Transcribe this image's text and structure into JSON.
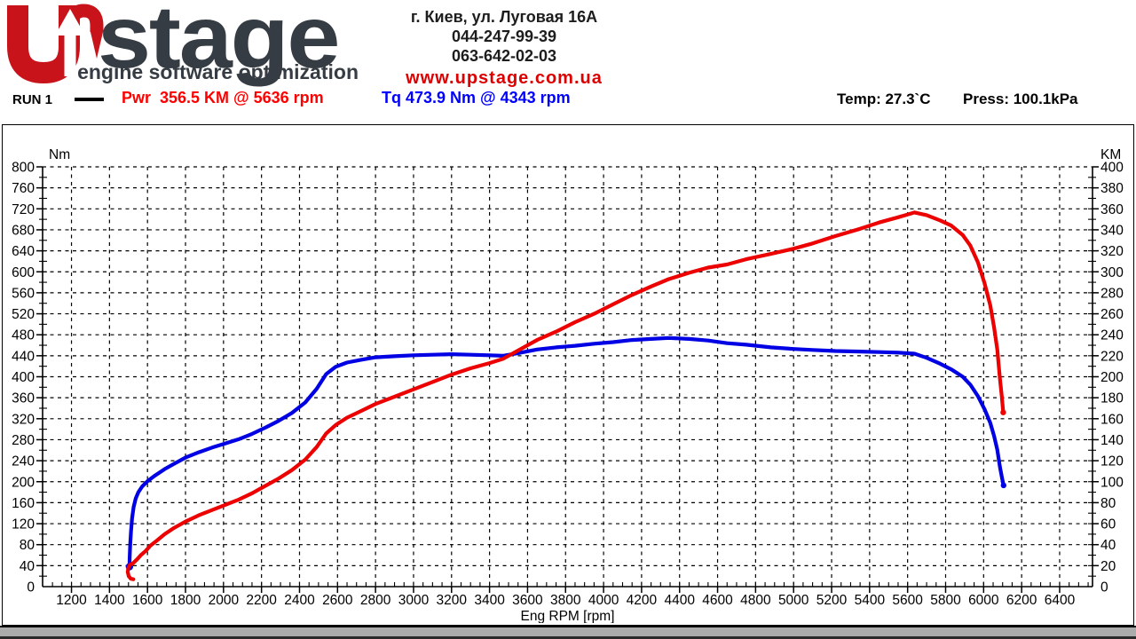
{
  "header": {
    "logo": {
      "wordmark": "stage",
      "tagline": "engine software optimization",
      "brand_red": "#c8131b",
      "brand_dark": "#363c43"
    },
    "contact": {
      "address": "г. Киев, ул. Луговая 16А",
      "phone1": "044-247-99-39",
      "phone2": "063-642-02-03",
      "website": "www.upstage.com.ua",
      "website_color": "#dd0000"
    },
    "run": {
      "label": "RUN 1",
      "power_reading": "Pwr  356.5 KM @ 5636 rpm",
      "power_color": "#fe0000",
      "torque_reading": "Tq 473.9 Nm @ 4343 rpm",
      "torque_color": "#0000fe"
    },
    "conditions": {
      "temperature": "Temp: 27.3`C",
      "pressure": "Press: 100.1kPa"
    }
  },
  "chart_data": {
    "type": "line",
    "title": "",
    "xlabel": "Eng RPM [rpm]",
    "grid": "dashed",
    "x_axis": {
      "min": 1048,
      "max": 6573,
      "tick_start": 1200,
      "tick_end": 6400,
      "tick_step": 200,
      "minor_step": 50
    },
    "left_axis": {
      "label": "Nm",
      "min": 0,
      "max": 800,
      "step": 40,
      "minor_step": 20
    },
    "right_axis": {
      "label": "KM",
      "min": 0,
      "max": 400,
      "step": 20,
      "minor_step": 10
    },
    "series": [
      {
        "name": "Torque",
        "axis": "left",
        "unit": "Nm",
        "color": "#0000e4",
        "peak": {
          "value": 473.9,
          "rpm": 4343
        },
        "start_dot": true,
        "end_dot": true,
        "points": [
          [
            1505,
            38
          ],
          [
            1506,
            55
          ],
          [
            1509,
            80
          ],
          [
            1513,
            105
          ],
          [
            1519,
            130
          ],
          [
            1527,
            152
          ],
          [
            1538,
            168
          ],
          [
            1552,
            180
          ],
          [
            1572,
            191
          ],
          [
            1600,
            201
          ],
          [
            1640,
            212
          ],
          [
            1690,
            224
          ],
          [
            1740,
            234
          ],
          [
            1800,
            246
          ],
          [
            1870,
            256
          ],
          [
            1940,
            265
          ],
          [
            2010,
            273
          ],
          [
            2080,
            281
          ],
          [
            2150,
            291
          ],
          [
            2220,
            303
          ],
          [
            2290,
            316
          ],
          [
            2360,
            331
          ],
          [
            2430,
            351
          ],
          [
            2490,
            377
          ],
          [
            2540,
            405
          ],
          [
            2590,
            419
          ],
          [
            2650,
            427
          ],
          [
            2720,
            432
          ],
          [
            2800,
            437
          ],
          [
            2900,
            439
          ],
          [
            3000,
            441
          ],
          [
            3100,
            442
          ],
          [
            3200,
            443
          ],
          [
            3300,
            442
          ],
          [
            3400,
            441
          ],
          [
            3470,
            440
          ],
          [
            3550,
            445
          ],
          [
            3650,
            452
          ],
          [
            3750,
            456
          ],
          [
            3850,
            459
          ],
          [
            3950,
            463
          ],
          [
            4050,
            466
          ],
          [
            4150,
            470
          ],
          [
            4250,
            472
          ],
          [
            4343,
            473.9
          ],
          [
            4450,
            472
          ],
          [
            4550,
            469
          ],
          [
            4650,
            464
          ],
          [
            4750,
            461
          ],
          [
            4880,
            456
          ],
          [
            5000,
            453
          ],
          [
            5100,
            451
          ],
          [
            5220,
            449
          ],
          [
            5350,
            448
          ],
          [
            5450,
            447
          ],
          [
            5550,
            446
          ],
          [
            5636,
            444
          ],
          [
            5700,
            436
          ],
          [
            5770,
            425
          ],
          [
            5830,
            414
          ],
          [
            5890,
            400
          ],
          [
            5930,
            385
          ],
          [
            5970,
            363
          ],
          [
            6005,
            338
          ],
          [
            6035,
            312
          ],
          [
            6055,
            287
          ],
          [
            6072,
            261
          ],
          [
            6086,
            228
          ],
          [
            6095,
            210
          ],
          [
            6105,
            193
          ]
        ]
      },
      {
        "name": "Power",
        "axis": "right",
        "unit": "KM",
        "color": "#ec0000",
        "peak": {
          "value": 356.5,
          "rpm": 5636
        },
        "start_dot": false,
        "end_dot": true,
        "points": [
          [
            1526,
            7
          ],
          [
            1512,
            7.5
          ],
          [
            1501,
            10
          ],
          [
            1496,
            14
          ],
          [
            1499,
            18
          ],
          [
            1508,
            21
          ],
          [
            1522,
            22
          ],
          [
            1545,
            26
          ],
          [
            1565,
            30
          ],
          [
            1590,
            34
          ],
          [
            1615,
            39
          ],
          [
            1650,
            44
          ],
          [
            1690,
            50
          ],
          [
            1740,
            56
          ],
          [
            1800,
            62
          ],
          [
            1870,
            68
          ],
          [
            1940,
            73
          ],
          [
            2010,
            78
          ],
          [
            2080,
            83
          ],
          [
            2150,
            89
          ],
          [
            2220,
            96
          ],
          [
            2290,
            103
          ],
          [
            2360,
            111
          ],
          [
            2430,
            121
          ],
          [
            2490,
            133
          ],
          [
            2540,
            146
          ],
          [
            2590,
            154
          ],
          [
            2650,
            161
          ],
          [
            2720,
            167
          ],
          [
            2800,
            174
          ],
          [
            2900,
            181
          ],
          [
            3000,
            188
          ],
          [
            3100,
            195
          ],
          [
            3200,
            202
          ],
          [
            3300,
            208
          ],
          [
            3400,
            213
          ],
          [
            3470,
            217
          ],
          [
            3550,
            225
          ],
          [
            3650,
            235
          ],
          [
            3750,
            243
          ],
          [
            3850,
            252
          ],
          [
            3950,
            260
          ],
          [
            4050,
            269
          ],
          [
            4150,
            278
          ],
          [
            4250,
            286
          ],
          [
            4343,
            293
          ],
          [
            4450,
            299
          ],
          [
            4550,
            304
          ],
          [
            4650,
            307
          ],
          [
            4750,
            312
          ],
          [
            4880,
            317
          ],
          [
            5000,
            322
          ],
          [
            5100,
            327
          ],
          [
            5220,
            334
          ],
          [
            5350,
            341
          ],
          [
            5450,
            347
          ],
          [
            5550,
            352
          ],
          [
            5636,
            356.5
          ],
          [
            5700,
            354
          ],
          [
            5770,
            349
          ],
          [
            5830,
            344
          ],
          [
            5890,
            335
          ],
          [
            5930,
            325
          ],
          [
            5970,
            309
          ],
          [
            6005,
            289
          ],
          [
            6035,
            268
          ],
          [
            6055,
            247
          ],
          [
            6072,
            226
          ],
          [
            6086,
            198
          ],
          [
            6095,
            182
          ],
          [
            6103,
            166
          ]
        ]
      }
    ]
  }
}
